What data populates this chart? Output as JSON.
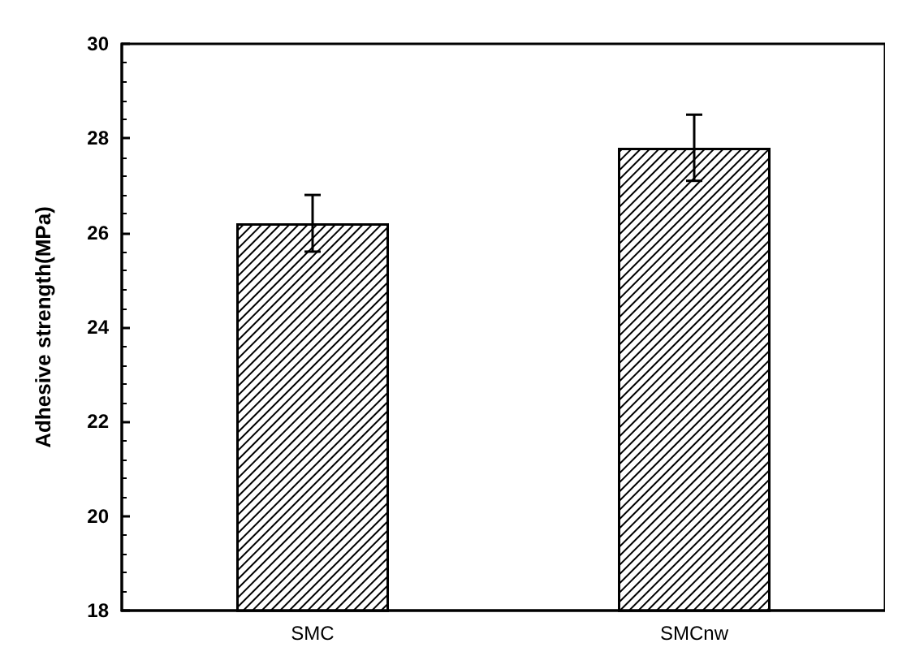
{
  "chart_data": {
    "type": "bar",
    "ylabel": "Adhesive strength(MPa)",
    "categories": [
      "SMC",
      "SMCnw"
    ],
    "values": [
      26.2,
      27.8
    ],
    "errors": [
      0.6,
      0.7
    ],
    "color": "#ffffff",
    "ylim": [
      18,
      30
    ],
    "yticks": [
      18,
      20,
      22,
      24,
      26,
      28,
      30
    ],
    "grid": false
  }
}
